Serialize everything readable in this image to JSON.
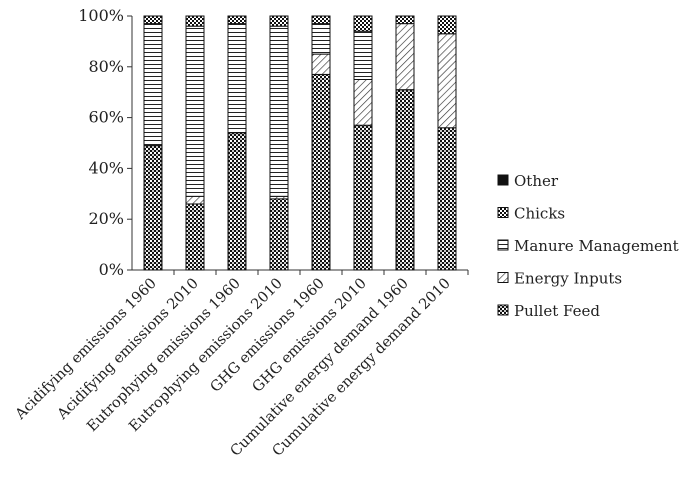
{
  "chart_data": {
    "type": "bar",
    "stacked": true,
    "percent": true,
    "categories": [
      "Acidifying emissions 1960",
      "Acidifying emissions 2010",
      "Eutrophying emissions 1960",
      "Eutrophying emissions 2010",
      "GHG emissions 1960",
      "GHG emissions 2010",
      "Cumulative energy demand 1960",
      "Cumulative energy demand 2010"
    ],
    "series": [
      {
        "name": "Pullet Feed",
        "values": [
          49,
          26,
          54,
          28,
          77,
          57,
          71,
          56
        ],
        "pattern": "dots-dense"
      },
      {
        "name": "Energy Inputs",
        "values": [
          0,
          3,
          0,
          1,
          8,
          18,
          26,
          37
        ],
        "pattern": "diagonal-lines"
      },
      {
        "name": "Manure Management",
        "values": [
          48,
          67,
          43,
          67,
          12,
          19,
          0,
          0
        ],
        "pattern": "horizontal-lines"
      },
      {
        "name": "Chicks",
        "values": [
          3,
          4,
          3,
          4,
          3,
          6,
          3,
          7
        ],
        "pattern": "checker"
      },
      {
        "name": "Other",
        "values": [
          0,
          0,
          0,
          0,
          0,
          0,
          0,
          0
        ],
        "pattern": "solid"
      }
    ],
    "y_ticks": [
      "0%",
      "20%",
      "40%",
      "60%",
      "80%",
      "100%"
    ],
    "ylim": [
      0,
      100
    ],
    "legend_position": "right",
    "legend_order": [
      "Other",
      "Chicks",
      "Manure Management",
      "Energy Inputs",
      "Pullet Feed"
    ],
    "grid": false
  }
}
